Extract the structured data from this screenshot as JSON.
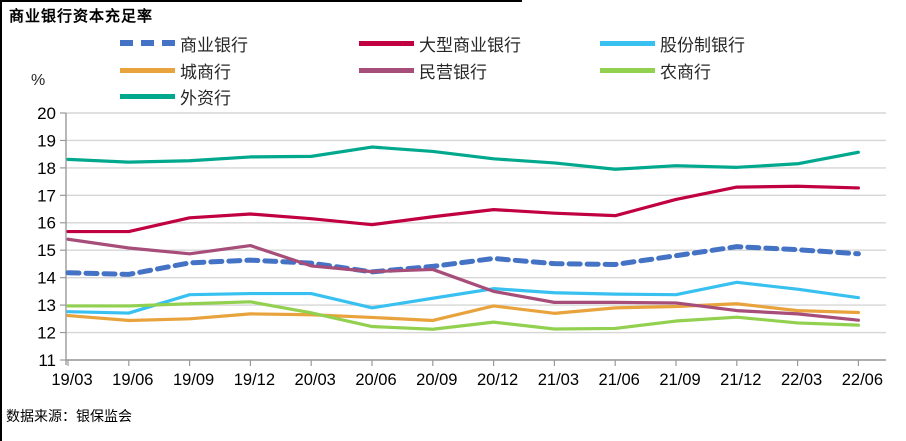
{
  "header": {
    "title": "商业银行资本充足率"
  },
  "unit_label": "%",
  "source_note": "数据来源：银保监会",
  "axis": {
    "y_ticks": [
      "20",
      "19",
      "18",
      "17",
      "16",
      "15",
      "14",
      "13",
      "12",
      "11"
    ]
  },
  "chart_data": {
    "type": "line",
    "title": "商业银行资本充足率",
    "ylabel": "%",
    "grid": true,
    "legend_position": "top",
    "ylim": [
      11,
      20
    ],
    "y_tick_step": 1,
    "categories": [
      "19/03",
      "19/06",
      "19/09",
      "19/12",
      "20/03",
      "20/06",
      "20/09",
      "20/12",
      "21/03",
      "21/06",
      "21/09",
      "21/12",
      "22/03",
      "22/06"
    ],
    "series": [
      {
        "name": "商业银行",
        "color": "#4472C4",
        "dashed": true,
        "values": [
          14.18,
          14.12,
          14.54,
          14.64,
          14.53,
          14.21,
          14.41,
          14.7,
          14.51,
          14.48,
          14.8,
          15.13,
          15.02,
          14.87
        ]
      },
      {
        "name": "大型商业银行",
        "color": "#C00040",
        "dashed": false,
        "values": [
          15.68,
          15.68,
          16.18,
          16.32,
          16.15,
          15.93,
          16.22,
          16.48,
          16.35,
          16.26,
          16.85,
          17.3,
          17.33,
          17.27
        ]
      },
      {
        "name": "股份制银行",
        "color": "#38C1F0",
        "dashed": false,
        "values": [
          12.76,
          12.71,
          13.38,
          13.42,
          13.42,
          12.9,
          13.25,
          13.6,
          13.45,
          13.4,
          13.38,
          13.83,
          13.58,
          13.27
        ]
      },
      {
        "name": "城商行",
        "color": "#E8A33D",
        "dashed": false,
        "values": [
          12.62,
          12.44,
          12.5,
          12.68,
          12.65,
          12.55,
          12.44,
          12.97,
          12.7,
          12.9,
          12.95,
          13.05,
          12.8,
          12.73
        ]
      },
      {
        "name": "民营银行",
        "color": "#A64D79",
        "dashed": false,
        "values": [
          15.4,
          15.08,
          14.87,
          15.17,
          14.43,
          14.22,
          14.3,
          13.5,
          13.1,
          13.1,
          13.08,
          12.8,
          12.68,
          12.45
        ]
      },
      {
        "name": "农商行",
        "color": "#92D050",
        "dashed": false,
        "values": [
          12.97,
          12.97,
          13.05,
          13.12,
          12.72,
          12.22,
          12.12,
          12.38,
          12.13,
          12.15,
          12.42,
          12.56,
          12.35,
          12.27
        ]
      },
      {
        "name": "外资行",
        "color": "#00A88E",
        "dashed": false,
        "values": [
          18.31,
          18.21,
          18.26,
          18.4,
          18.42,
          18.76,
          18.6,
          18.33,
          18.18,
          17.95,
          18.08,
          18.02,
          18.15,
          18.57
        ]
      }
    ]
  }
}
